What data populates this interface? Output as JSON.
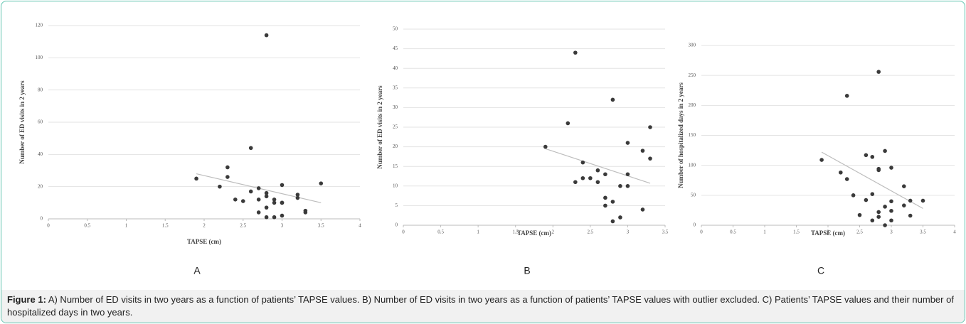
{
  "chart_data": [
    {
      "type": "scatter",
      "panel": "A",
      "xlabel": "TAPSE (cm)",
      "ylabel": "Number of ED visits in 2 years",
      "xlim": [
        0,
        4
      ],
      "xticks": [
        0,
        0.5,
        1,
        1.5,
        2,
        2.5,
        3,
        3.5,
        4
      ],
      "ylim": [
        0,
        120
      ],
      "yticks": [
        0,
        20,
        40,
        60,
        80,
        100,
        120
      ],
      "grid": true,
      "color": "#3a3a3a",
      "x": [
        1.9,
        2.2,
        2.3,
        2.3,
        2.4,
        2.5,
        2.6,
        2.6,
        2.7,
        2.7,
        2.7,
        2.8,
        2.8,
        2.8,
        2.8,
        2.8,
        2.9,
        2.9,
        2.9,
        3.0,
        3.0,
        3.0,
        3.0,
        3.2,
        3.2,
        3.3,
        3.3,
        3.5
      ],
      "values": [
        25,
        20,
        32,
        26,
        12,
        11,
        17,
        44,
        19,
        4,
        12,
        16,
        14,
        7,
        1,
        114,
        12,
        10,
        1,
        21,
        10,
        10,
        2,
        15,
        13,
        5,
        4,
        22
      ],
      "trendline": {
        "x": [
          1.9,
          3.5
        ],
        "values": [
          28,
          10
        ],
        "color": "#bdbdbd"
      }
    },
    {
      "type": "scatter",
      "panel": "B",
      "xlabel": "TAPSE (cm)",
      "ylabel": "Number of ED visits in 2 years",
      "xlim": [
        0,
        3.5
      ],
      "xticks": [
        0,
        0.5,
        1,
        1.5,
        2,
        2.5,
        3,
        3.5
      ],
      "ylim": [
        0,
        50
      ],
      "yticks": [
        0,
        5,
        10,
        15,
        20,
        25,
        30,
        35,
        40,
        45,
        50
      ],
      "grid": true,
      "color": "#3a3a3a",
      "x": [
        1.9,
        2.2,
        2.3,
        2.3,
        2.4,
        2.4,
        2.5,
        2.6,
        2.6,
        2.7,
        2.7,
        2.7,
        2.8,
        2.8,
        2.8,
        2.9,
        2.9,
        3.0,
        3.0,
        3.0,
        3.2,
        3.2,
        3.3,
        3.3
      ],
      "values": [
        20,
        26,
        44,
        11,
        16,
        12,
        12,
        14,
        11,
        13,
        7,
        5,
        32,
        6,
        1,
        10,
        2,
        21,
        13,
        10,
        19,
        4,
        25,
        17
      ],
      "trendline": {
        "x": [
          1.9,
          3.3
        ],
        "values": [
          19.5,
          10.7
        ],
        "color": "#bdbdbd"
      }
    },
    {
      "type": "scatter",
      "panel": "C",
      "xlabel": "TAPSE (cm)",
      "ylabel": "Number of hospitalized days in 2 years",
      "xlim": [
        0,
        4
      ],
      "xticks": [
        0,
        0.5,
        1,
        1.5,
        2,
        2.5,
        3,
        3.5,
        4
      ],
      "ylim": [
        0,
        300
      ],
      "yticks": [
        0,
        50,
        100,
        150,
        200,
        250,
        300
      ],
      "grid": true,
      "color": "#3a3a3a",
      "x": [
        1.9,
        2.2,
        2.3,
        2.3,
        2.4,
        2.5,
        2.6,
        2.6,
        2.7,
        2.7,
        2.7,
        2.8,
        2.8,
        2.8,
        2.8,
        2.8,
        2.9,
        2.9,
        2.9,
        3.0,
        3.0,
        3.0,
        3.0,
        3.2,
        3.2,
        3.3,
        3.3,
        3.5
      ],
      "values": [
        109,
        88,
        77,
        216,
        50,
        17,
        117,
        42,
        114,
        52,
        8,
        92,
        94,
        22,
        14,
        256,
        124,
        31,
        0,
        96,
        40,
        24,
        8,
        65,
        33,
        41,
        16,
        41
      ],
      "trendline": {
        "x": [
          1.9,
          3.5
        ],
        "values": [
          122,
          28
        ],
        "color": "#bdbdbd"
      }
    }
  ],
  "caption": {
    "label": "Figure 1:",
    "text": "A) Number of ED visits in two years as a function of patients’ TAPSE values. B) Number of ED visits in two years as a function of patients’ TAPSE values with outlier excluded. C) Patients’ TAPSE values and their number of hospitalized days in two years."
  }
}
